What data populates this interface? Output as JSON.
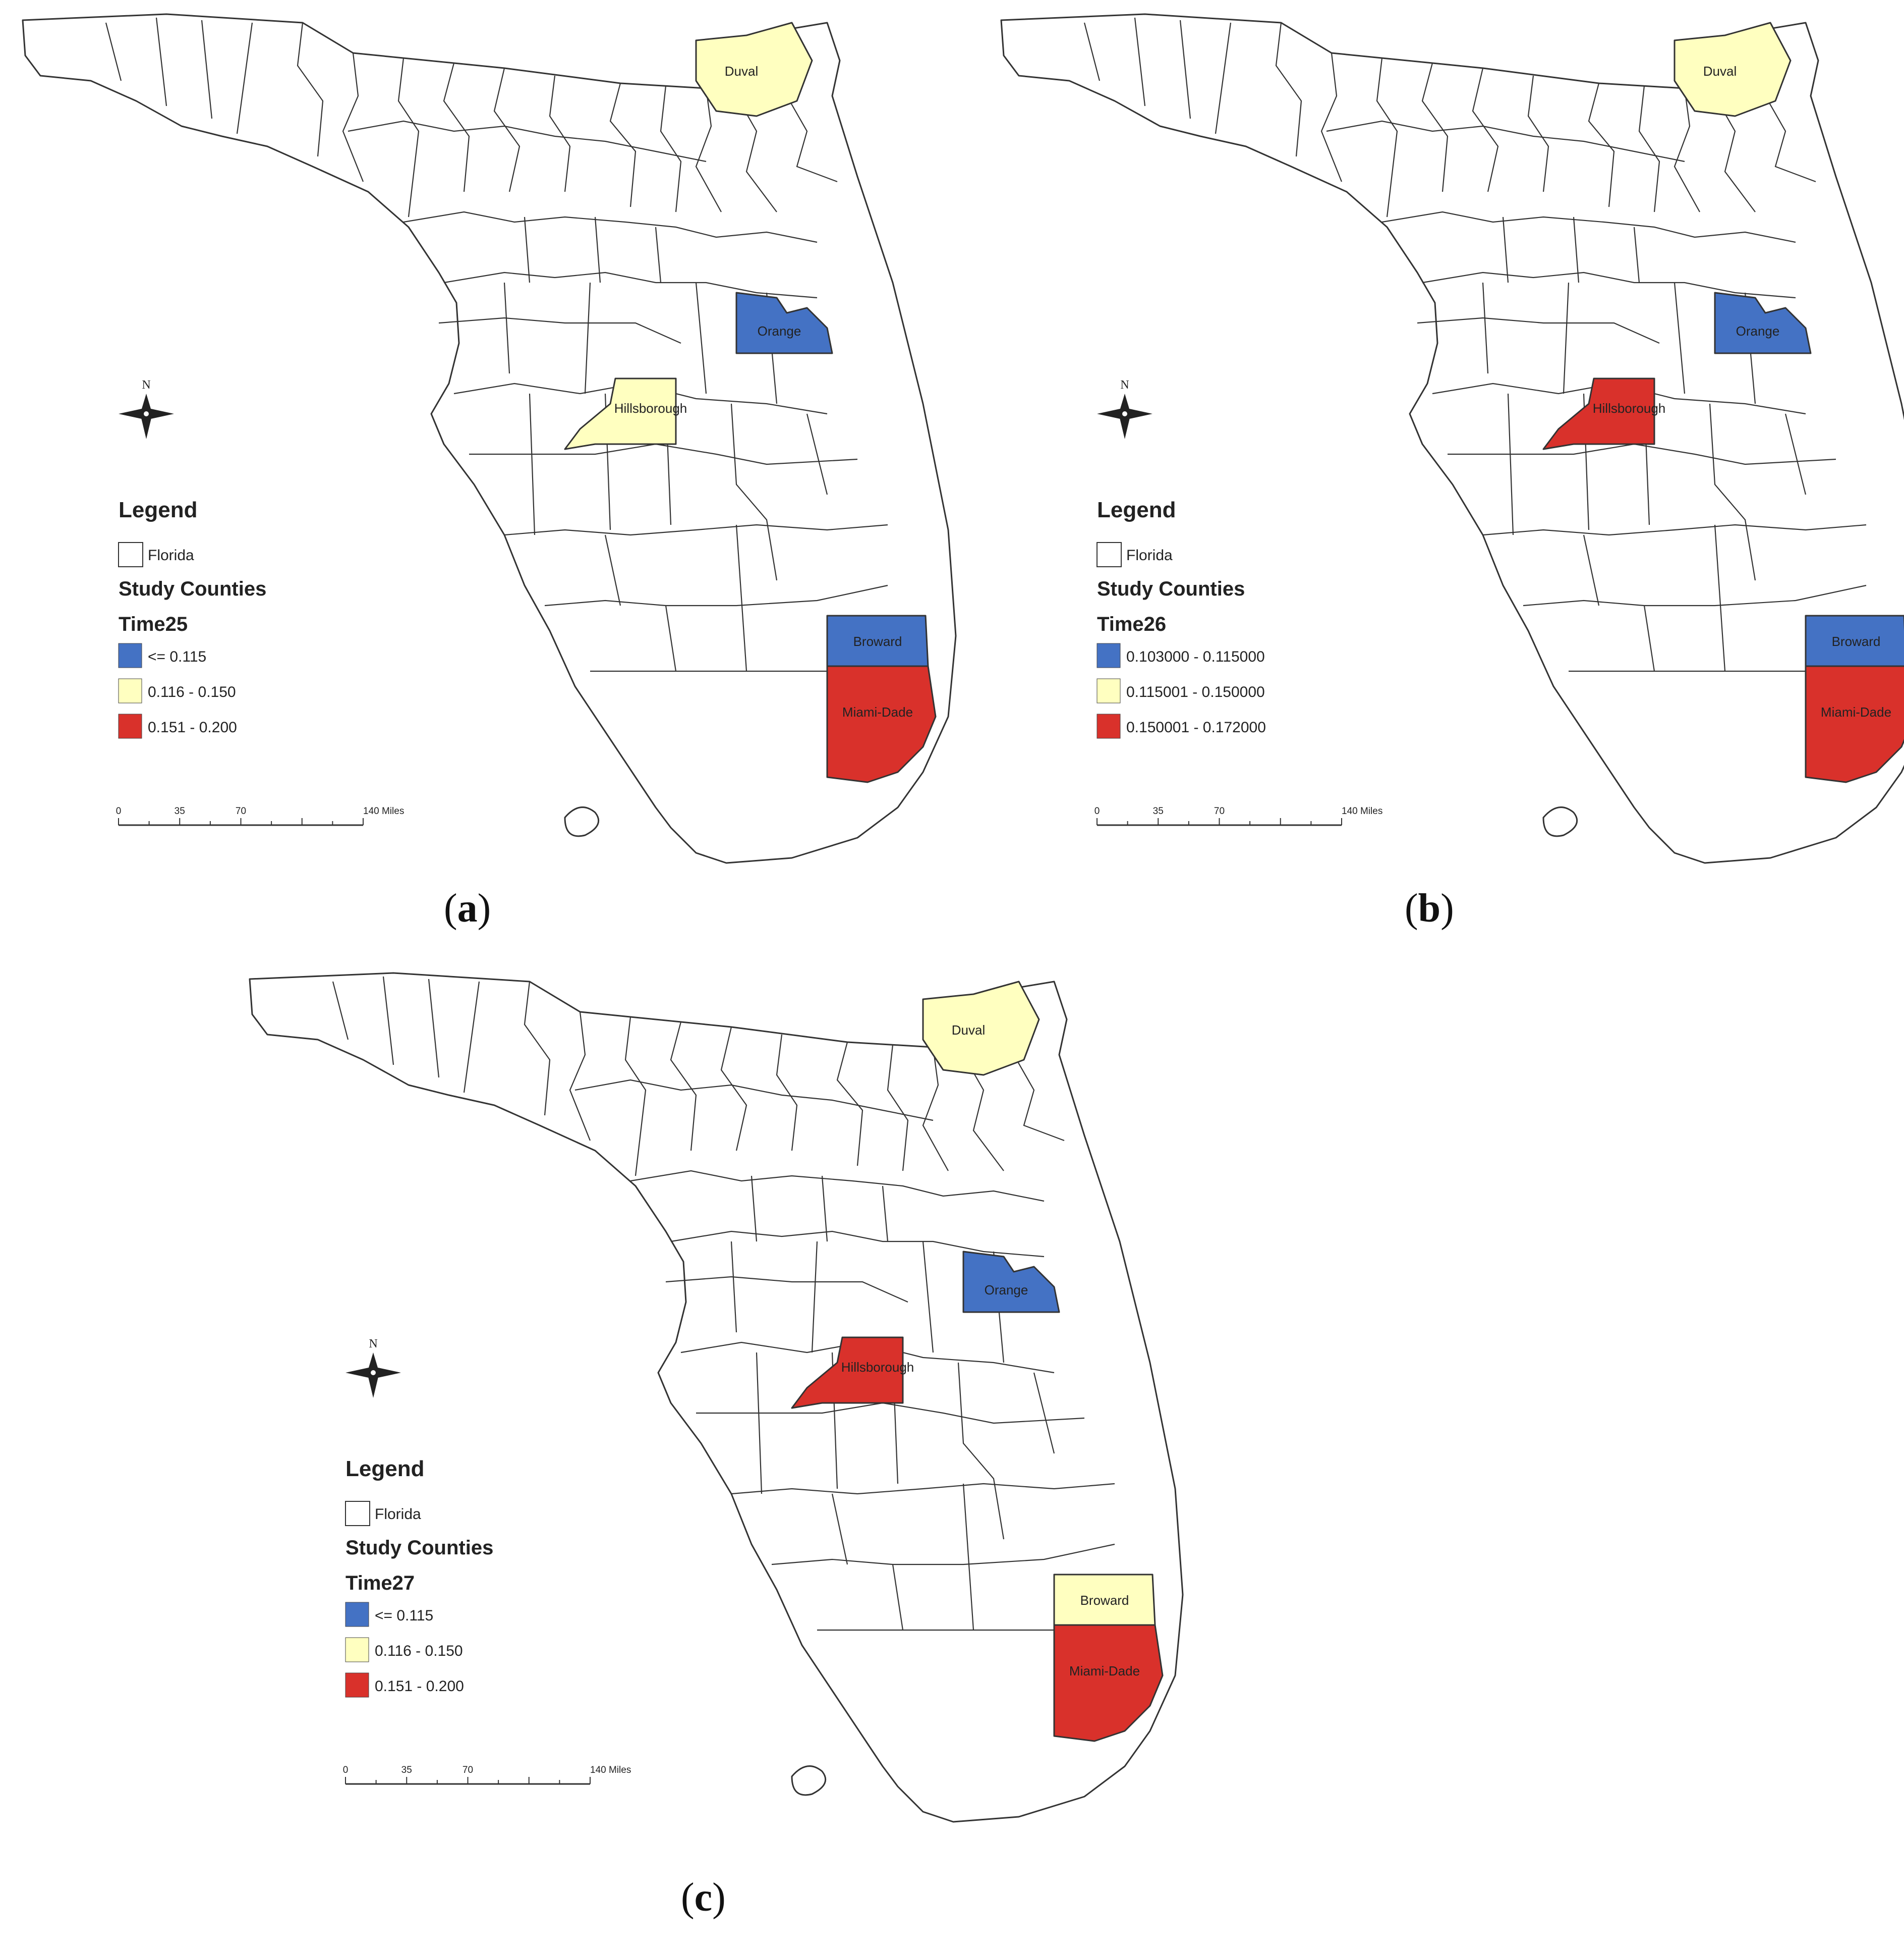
{
  "county_labels": {
    "duval": "Duval",
    "orange": "Orange",
    "hillsborough": "Hillsborough",
    "broward": "Broward",
    "miami_dade": "Miami-Dade"
  },
  "north_arrow": "N",
  "colors": {
    "blue": "#4472c4",
    "yellow": "#ffffc0",
    "red": "#d9312b",
    "outline": "#333333"
  },
  "panels": [
    {
      "label_open": "(",
      "label_letter": "a",
      "label_close": ")",
      "legend": {
        "title": "Legend",
        "base_layer": "Florida",
        "layer": "Study Counties",
        "field": "Time25",
        "classes": [
          {
            "label": "<= 0.115",
            "color": "#4472c4"
          },
          {
            "label": "0.116 - 0.150",
            "color": "#ffffc0"
          },
          {
            "label": "0.151 - 0.200",
            "color": "#d9312b"
          }
        ]
      },
      "scale": {
        "ticks": [
          "0",
          "35",
          "70",
          "140 Miles"
        ]
      },
      "counties": {
        "duval": "yellow",
        "orange": "blue",
        "hillsborough": "yellow",
        "broward": "blue",
        "miami_dade": "red"
      }
    },
    {
      "label_open": "(",
      "label_letter": "b",
      "label_close": ")",
      "legend": {
        "title": "Legend",
        "base_layer": "Florida",
        "layer": "Study Counties",
        "field": "Time26",
        "classes": [
          {
            "label": "0.103000 - 0.115000",
            "color": "#4472c4"
          },
          {
            "label": "0.115001 - 0.150000",
            "color": "#ffffc0"
          },
          {
            "label": "0.150001 - 0.172000",
            "color": "#d9312b"
          }
        ]
      },
      "scale": {
        "ticks": [
          "0",
          "35",
          "70",
          "140 Miles"
        ]
      },
      "counties": {
        "duval": "yellow",
        "orange": "blue",
        "hillsborough": "red",
        "broward": "blue",
        "miami_dade": "red"
      }
    },
    {
      "label_open": "(",
      "label_letter": "c",
      "label_close": ")",
      "legend": {
        "title": "Legend",
        "base_layer": "Florida",
        "layer": "Study Counties",
        "field": "Time27",
        "classes": [
          {
            "label": "<= 0.115",
            "color": "#4472c4"
          },
          {
            "label": "0.116 - 0.150",
            "color": "#ffffc0"
          },
          {
            "label": "0.151 - 0.200",
            "color": "#d9312b"
          }
        ]
      },
      "scale": {
        "ticks": [
          "0",
          "35",
          "70",
          "140 Miles"
        ]
      },
      "counties": {
        "duval": "yellow",
        "orange": "blue",
        "hillsborough": "red",
        "broward": "yellow",
        "miami_dade": "red"
      }
    }
  ]
}
